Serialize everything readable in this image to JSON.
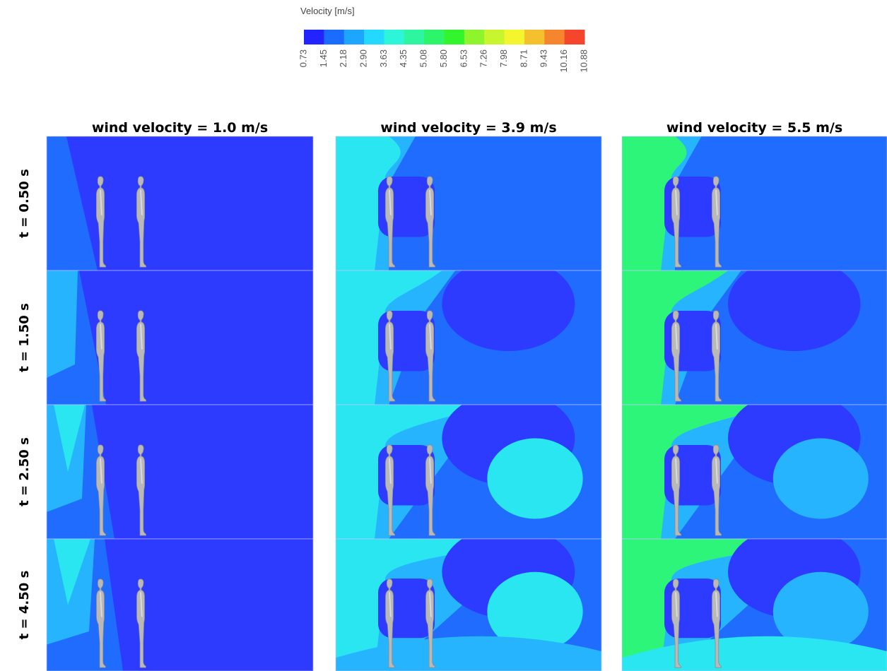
{
  "colorbar": {
    "title": "Velocity [m/s]",
    "labels": [
      "0.73",
      "1.45",
      "2.18",
      "2.90",
      "3.63",
      "4.35",
      "5.08",
      "5.80",
      "6.53",
      "7.26",
      "7.98",
      "8.71",
      "9.43",
      "10.16",
      "10.88"
    ],
    "colors": [
      "#2323ff",
      "#1a6bff",
      "#1ea6ff",
      "#24d9ff",
      "#2cf5d8",
      "#2df5a0",
      "#2df56a",
      "#33f52d",
      "#8ef52d",
      "#c8f52d",
      "#f5f52d",
      "#f5c02d",
      "#f5862d",
      "#f5462d"
    ]
  },
  "columns": [
    "wind velocity = 1.0 m/s",
    "wind velocity = 3.9 m/s",
    "wind velocity = 5.5 m/s"
  ],
  "rows": [
    "t = 0.50 s",
    "t = 1.50 s",
    "t = 2.50 s",
    "t = 4.50 s"
  ]
}
